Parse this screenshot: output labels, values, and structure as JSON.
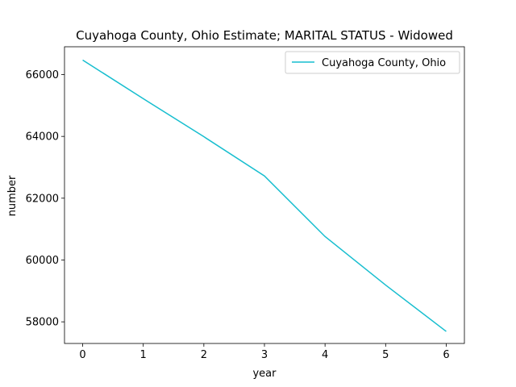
{
  "chart_data": {
    "type": "line",
    "title": "Cuyahoga County, Ohio Estimate; MARITAL STATUS - Widowed",
    "xlabel": "year",
    "ylabel": "number",
    "x": [
      0,
      1,
      2,
      3,
      4,
      5,
      6
    ],
    "xticks": [
      "0",
      "1",
      "2",
      "3",
      "4",
      "5",
      "6"
    ],
    "yticks": [
      "58000",
      "60000",
      "62000",
      "64000",
      "66000"
    ],
    "xlim": [
      -0.3,
      6.3
    ],
    "ylim": [
      57300,
      66900
    ],
    "grid": false,
    "legend_position": "top-right",
    "series": [
      {
        "name": "Cuyahoga County, Ohio",
        "color": "#17becf",
        "values": [
          66470,
          65220,
          63990,
          62720,
          60760,
          59190,
          57690
        ]
      }
    ]
  }
}
